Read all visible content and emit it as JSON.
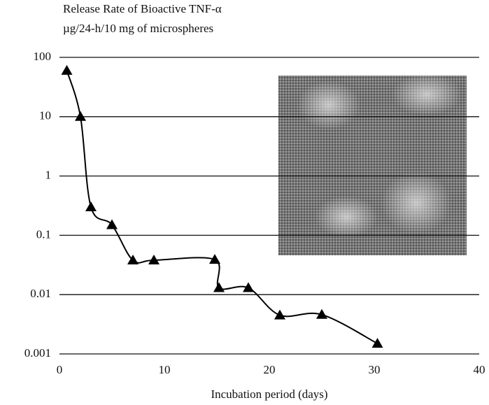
{
  "chart_data": {
    "type": "line",
    "title": "Release Rate of Bioactive TNF-α",
    "subtitle": "µg/24-h/10 mg of microspheres",
    "x_label": "Incubation period (days)",
    "x": [
      0.7,
      2,
      3,
      5,
      7,
      9,
      14.8,
      15.2,
      18,
      21,
      25,
      30.3
    ],
    "series": [
      {
        "name": "TNF-α",
        "color": "#000000",
        "values": [
          60,
          10,
          0.3,
          0.15,
          0.038,
          0.038,
          0.039,
          0.013,
          0.013,
          0.0045,
          0.0046,
          0.0015
        ]
      }
    ],
    "xlim": [
      0,
      40
    ],
    "xticks": [
      0,
      10,
      20,
      30,
      40
    ],
    "ylim": [
      0.001,
      100
    ],
    "yticks": [
      100,
      10,
      1,
      0.1,
      0.01,
      0.001
    ],
    "yscale": "log",
    "grid": true,
    "marker": "triangle"
  }
}
